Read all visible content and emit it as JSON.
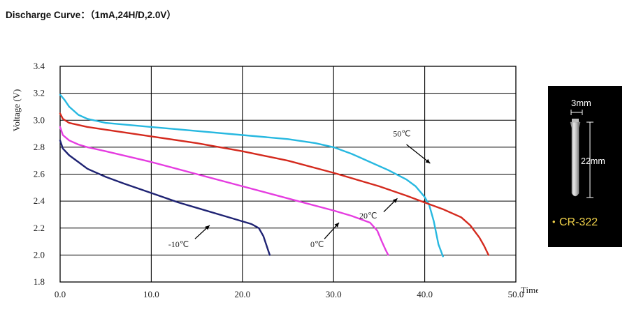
{
  "title": "Discharge Curve：（1mA,24H/D,2.0V）",
  "chart_data": {
    "type": "line",
    "ylabel": "Voltage (V)",
    "xlabel": "Time (H)",
    "xlim": [
      0,
      50
    ],
    "ylim": [
      1.8,
      3.4
    ],
    "x_ticks": [
      "0.0",
      "10.0",
      "20.0",
      "30.0",
      "40.0",
      "50.0"
    ],
    "y_ticks": [
      "1.8",
      "2.0",
      "2.2",
      "2.4",
      "2.6",
      "2.8",
      "3.0",
      "3.2",
      "3.4"
    ],
    "grid": true,
    "series": [
      {
        "name": "50℃",
        "color": "#27b8e0",
        "x": [
          0,
          0.5,
          1,
          2,
          3,
          5,
          10,
          15,
          20,
          25,
          28,
          30,
          32,
          34,
          36,
          38,
          39,
          40,
          40.5,
          41,
          41.5,
          42
        ],
        "y": [
          3.19,
          3.15,
          3.1,
          3.04,
          3.01,
          2.98,
          2.95,
          2.92,
          2.89,
          2.86,
          2.83,
          2.8,
          2.75,
          2.69,
          2.63,
          2.56,
          2.51,
          2.43,
          2.37,
          2.25,
          2.08,
          1.99
        ]
      },
      {
        "name": "20℃",
        "color": "#d42a1e",
        "x": [
          0,
          0.3,
          1,
          3,
          5,
          10,
          15,
          20,
          25,
          30,
          35,
          38,
          40,
          42,
          44,
          45,
          46,
          46.5,
          47
        ],
        "y": [
          3.05,
          3.01,
          2.98,
          2.95,
          2.93,
          2.88,
          2.83,
          2.77,
          2.7,
          2.61,
          2.51,
          2.44,
          2.39,
          2.34,
          2.28,
          2.22,
          2.13,
          2.07,
          2.0
        ]
      },
      {
        "name": "0℃",
        "color": "#e53de0",
        "x": [
          0,
          0.3,
          1,
          2,
          3,
          5,
          10,
          15,
          20,
          25,
          30,
          32,
          34,
          34.8,
          35.3,
          35.7,
          36
        ],
        "y": [
          2.95,
          2.89,
          2.85,
          2.82,
          2.8,
          2.77,
          2.69,
          2.6,
          2.51,
          2.42,
          2.33,
          2.29,
          2.24,
          2.18,
          2.1,
          2.04,
          2.0
        ]
      },
      {
        "name": "-10℃",
        "color": "#1f2373",
        "x": [
          0,
          0.3,
          1,
          2,
          3,
          5,
          7,
          10,
          13,
          15,
          18,
          20,
          21,
          21.8,
          22.3,
          22.7,
          23
        ],
        "y": [
          2.85,
          2.79,
          2.74,
          2.69,
          2.64,
          2.58,
          2.53,
          2.46,
          2.39,
          2.35,
          2.29,
          2.25,
          2.23,
          2.2,
          2.14,
          2.06,
          2.0
        ]
      }
    ],
    "annotations": [
      {
        "text": "50℃",
        "arrow": true
      },
      {
        "text": "20℃",
        "arrow": true
      },
      {
        "text": "0℃",
        "arrow": true
      },
      {
        "text": "-10℃",
        "arrow": true
      }
    ]
  },
  "battery": {
    "diameter_label": "3mm",
    "length_label": "22mm",
    "model_label": "CR-322",
    "bullet": "•"
  }
}
